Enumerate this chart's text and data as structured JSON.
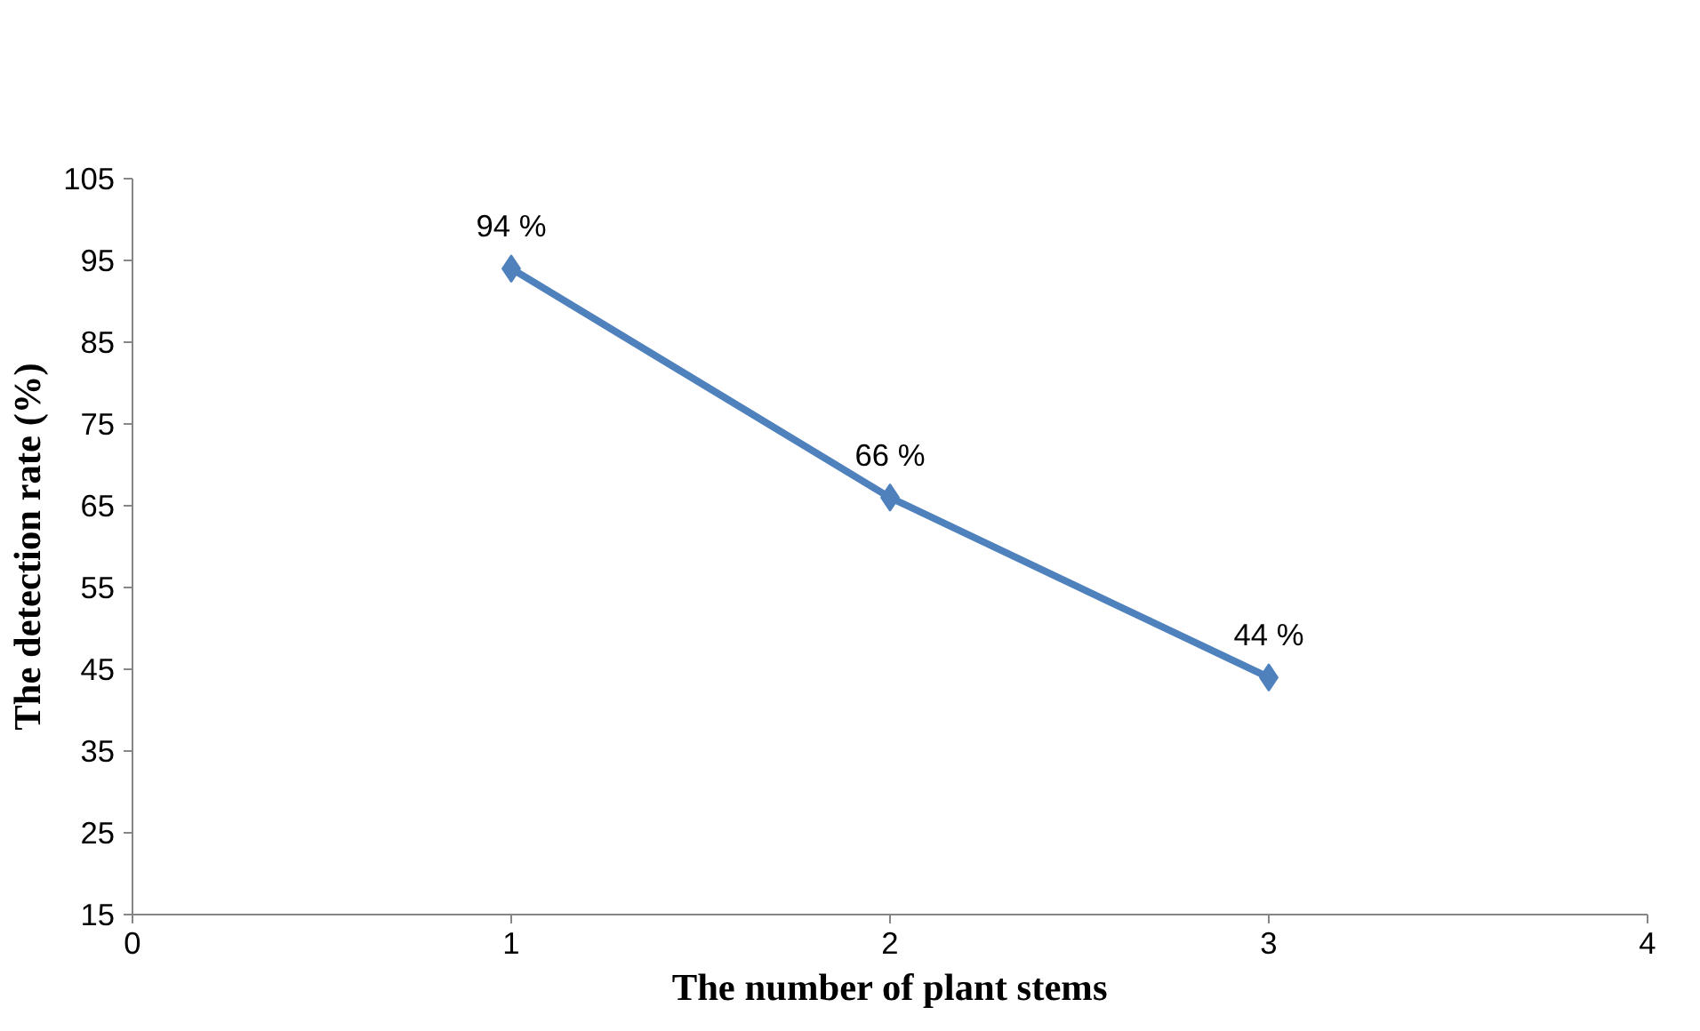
{
  "chart_data": {
    "type": "line",
    "xlabel": "The number of plant stems",
    "ylabel": "The detection rate (%)",
    "x": [
      1,
      2,
      3
    ],
    "series": [
      {
        "color": "#4f81bd",
        "values": [
          94,
          66,
          44
        ],
        "value_labels": [
          "94 %",
          "66 %",
          "44 %"
        ]
      }
    ],
    "xlim": [
      0,
      4
    ],
    "xticks": [
      0,
      1,
      2,
      3,
      4
    ],
    "ylim": [
      15,
      105
    ],
    "yticks": [
      15,
      25,
      35,
      45,
      55,
      65,
      75,
      85,
      95,
      105
    ],
    "grid": false,
    "marker": "diamond",
    "line_style": "solid"
  }
}
